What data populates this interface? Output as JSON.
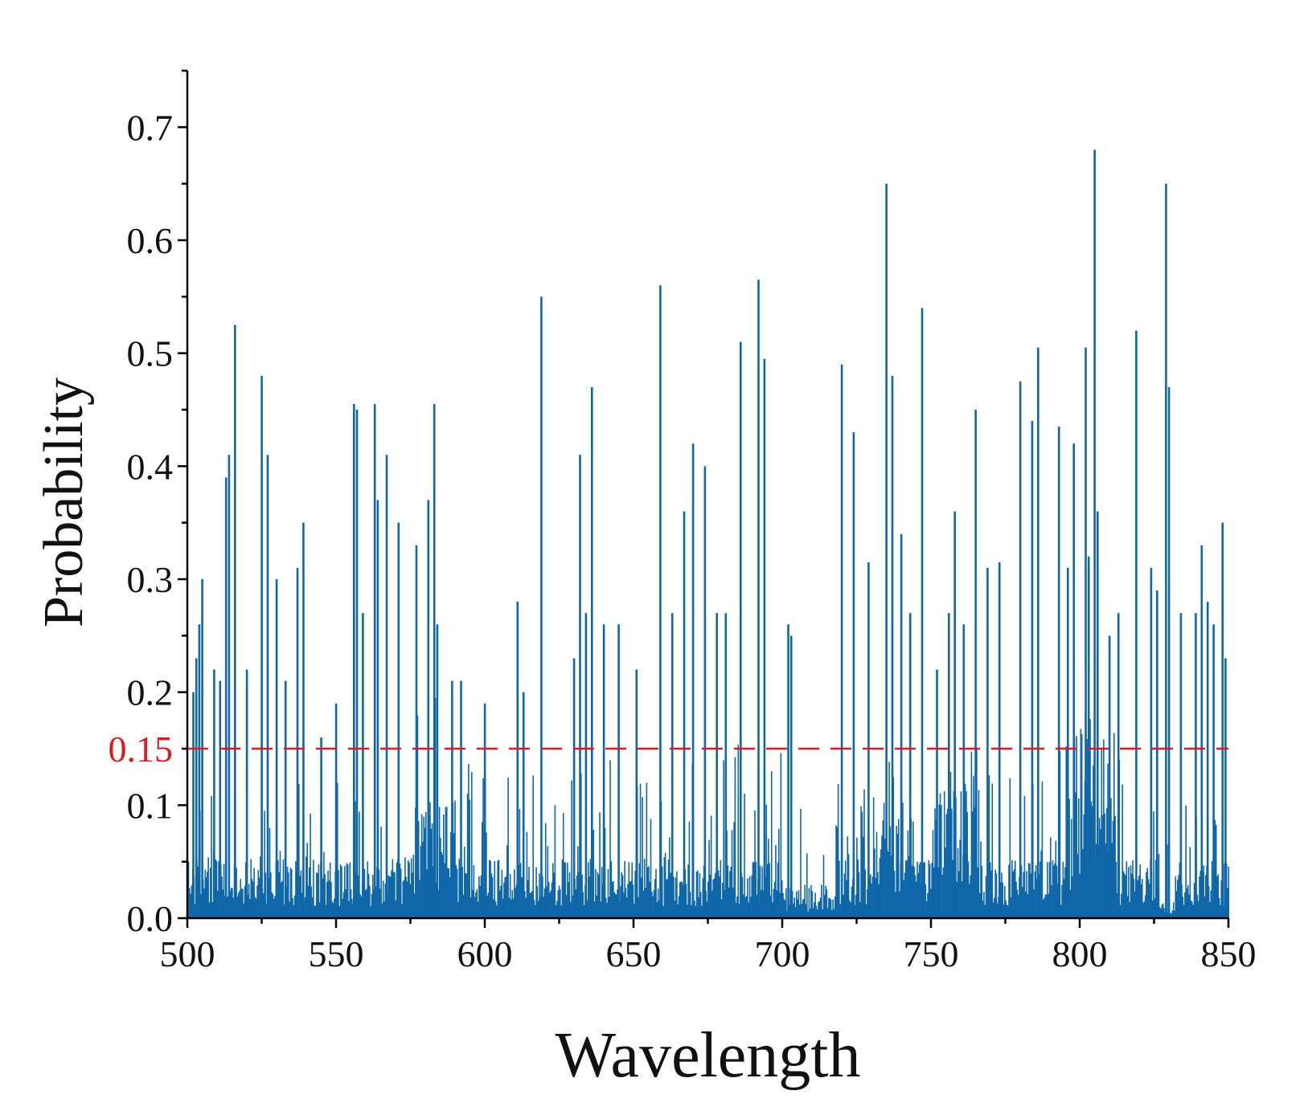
{
  "chart_data": {
    "type": "bar",
    "xlabel": "Wavelength",
    "ylabel": "Probability",
    "xlim": [
      500,
      850
    ],
    "ylim": [
      0,
      0.75
    ],
    "x_ticks": [
      "500",
      "550",
      "600",
      "650",
      "700",
      "750",
      "800",
      "850"
    ],
    "y_ticks": [
      "0.0",
      "0.1",
      "0.2",
      "0.3",
      "0.4",
      "0.5",
      "0.6",
      "0.7"
    ],
    "threshold": {
      "value": 0.15,
      "label": "0.15",
      "color": "#e0191f"
    },
    "bar_color": "#0f67a8",
    "series": [
      {
        "name": "Probability",
        "x": [
          502,
          503,
          504,
          505,
          509,
          511,
          513,
          514,
          516,
          520,
          525,
          527,
          530,
          533,
          537,
          539,
          545,
          550,
          556,
          557,
          559,
          563,
          564,
          567,
          571,
          577,
          581,
          583,
          584,
          589,
          592,
          600,
          611,
          613,
          619,
          630,
          632,
          634,
          636,
          640,
          645,
          651,
          659,
          663,
          667,
          670,
          674,
          678,
          681,
          686,
          692,
          694,
          702,
          703,
          720,
          724,
          729,
          735,
          737,
          740,
          743,
          747,
          752,
          756,
          758,
          761,
          765,
          769,
          773,
          780,
          784,
          786,
          793,
          796,
          798,
          802,
          803,
          805,
          806,
          810,
          813,
          819,
          824,
          826,
          829,
          830,
          834,
          839,
          841,
          843,
          845,
          848,
          849
        ],
        "values": [
          0.2,
          0.23,
          0.26,
          0.3,
          0.22,
          0.21,
          0.39,
          0.41,
          0.525,
          0.22,
          0.48,
          0.41,
          0.3,
          0.21,
          0.31,
          0.35,
          0.16,
          0.19,
          0.455,
          0.45,
          0.27,
          0.455,
          0.37,
          0.41,
          0.35,
          0.33,
          0.37,
          0.455,
          0.26,
          0.21,
          0.21,
          0.19,
          0.28,
          0.2,
          0.55,
          0.23,
          0.41,
          0.27,
          0.47,
          0.26,
          0.26,
          0.22,
          0.56,
          0.27,
          0.36,
          0.42,
          0.4,
          0.27,
          0.27,
          0.51,
          0.565,
          0.495,
          0.26,
          0.25,
          0.49,
          0.43,
          0.315,
          0.65,
          0.48,
          0.34,
          0.27,
          0.54,
          0.22,
          0.27,
          0.36,
          0.26,
          0.45,
          0.31,
          0.315,
          0.475,
          0.44,
          0.505,
          0.435,
          0.31,
          0.42,
          0.505,
          0.32,
          0.68,
          0.36,
          0.25,
          0.27,
          0.52,
          0.31,
          0.29,
          0.65,
          0.47,
          0.27,
          0.27,
          0.33,
          0.28,
          0.26,
          0.35,
          0.23
        ]
      }
    ]
  }
}
